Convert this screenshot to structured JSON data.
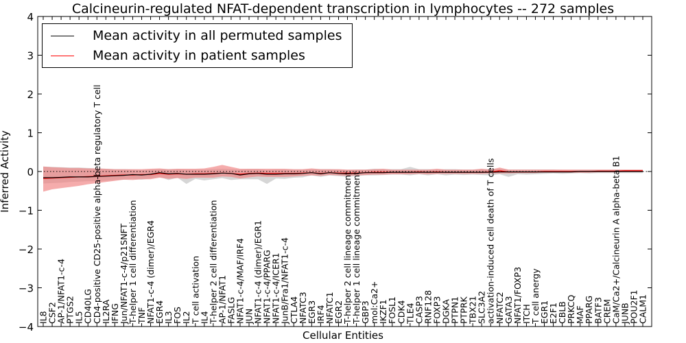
{
  "chart_data": {
    "type": "line",
    "title": "Calcineurin-regulated NFAT-dependent transcription in lymphocytes -- 272 samples",
    "xlabel": "Cellular Entities",
    "ylabel": "Inferred Activity",
    "ylim": [
      -4,
      4
    ],
    "yticks": [
      "4",
      "3",
      "2",
      "1",
      "0",
      "−1",
      "−2",
      "−3",
      "−4"
    ],
    "ytick_values": [
      4,
      3,
      2,
      1,
      0,
      -1,
      -2,
      -3,
      -4
    ],
    "legend_position": "top-left",
    "colors": {
      "permuted": "#000000",
      "patient": "#ff0000",
      "patient_band": "#f08080",
      "permuted_band": "#c8c8c8"
    },
    "categories": [
      "IL8",
      "CSF2",
      "AP-1/NFAT1-c-4",
      "PTGS2",
      "IL5",
      "CD40LG",
      "CD4-positive CD25-positive alpha-beta regulatory T cell",
      "IL2RA",
      "IFNG",
      "Jun/NFAT1-c-4/p21SNFT",
      "T-helper 1 cell differentiation",
      "TNF",
      "NFAT1-c-4 (dimer)/EGR4",
      "EGR4",
      "IL3",
      "FOS",
      "IL2",
      "T cell activation",
      "IL4",
      "T-helper 2 cell differentiation",
      "AP-1/NFAT1",
      "FASLG",
      "NFAT1-c-4/MAF/IRF4",
      "JUN",
      "NFAT1-c-4 (dimer)/EGR1",
      "NFAT1-c-4/PPARG",
      "NFAT1-c-4/ICER1",
      "JunB/Fra1/NFAT1-c-4",
      "CTLA4",
      "NFATC3",
      "EGR3",
      "IRF4",
      "NFATC1",
      "EGR2",
      "T-helper 2 cell lineage commitment",
      "T-helper 1 cell lineage commitment",
      "GBP3",
      "mol:Ca2+",
      "IKZF1",
      "FOSL1",
      "CDK4",
      "TLE4",
      "CASP3",
      "RNF128",
      "FOXP3",
      "DGKA",
      "PTPN1",
      "PTPRK",
      "TBX21",
      "SLC3A2",
      "activation-induced cell death of T cells",
      "NFATC2",
      "GATA3",
      "NFAT1/FOXP3",
      "ITCH",
      "T cell anergy",
      "EGR1",
      "E2F1",
      "CBLB",
      "PRKCQ",
      "MAF",
      "PPARG",
      "BATF3",
      "CREM",
      "CaM/Ca2+/Calcineurin A alpha-beta B1",
      "JUNB",
      "POU2F1",
      "CALM1"
    ],
    "series": [
      {
        "name": "Mean activity in all permuted samples",
        "values": [
          -0.16,
          -0.16,
          -0.15,
          -0.14,
          -0.14,
          -0.14,
          -0.13,
          -0.12,
          -0.11,
          -0.1,
          -0.08,
          -0.09,
          -0.07,
          -0.03,
          -0.06,
          -0.05,
          -0.07,
          -0.07,
          -0.07,
          -0.06,
          -0.04,
          -0.05,
          -0.09,
          -0.06,
          -0.05,
          -0.07,
          -0.07,
          -0.06,
          -0.06,
          -0.05,
          -0.03,
          -0.06,
          -0.03,
          -0.05,
          -0.06,
          -0.05,
          -0.03,
          -0.03,
          -0.03,
          -0.02,
          -0.02,
          -0.02,
          -0.02,
          -0.02,
          -0.02,
          -0.02,
          -0.02,
          -0.02,
          -0.02,
          -0.02,
          -0.02,
          -0.01,
          -0.01,
          -0.01,
          -0.01,
          -0.01,
          -0.01,
          -0.01,
          -0.01,
          -0.01,
          0.0,
          0.0,
          0.0,
          0.0,
          0.0,
          0.0,
          0.0,
          0.0
        ],
        "lower": [
          -0.31,
          -0.3,
          -0.29,
          -0.27,
          -0.26,
          -0.25,
          -0.25,
          -0.24,
          -0.22,
          -0.21,
          -0.19,
          -0.21,
          -0.18,
          -0.14,
          -0.22,
          -0.16,
          -0.32,
          -0.19,
          -0.23,
          -0.2,
          -0.17,
          -0.22,
          -0.2,
          -0.2,
          -0.2,
          -0.32,
          -0.18,
          -0.19,
          -0.16,
          -0.15,
          -0.1,
          -0.14,
          -0.1,
          -0.12,
          -0.14,
          -0.12,
          -0.1,
          -0.1,
          -0.09,
          -0.08,
          -0.08,
          -0.1,
          -0.07,
          -0.1,
          -0.07,
          -0.1,
          -0.08,
          -0.09,
          -0.08,
          -0.09,
          -0.1,
          -0.07,
          -0.14,
          -0.07,
          -0.08,
          -0.07,
          -0.06,
          -0.05,
          -0.06,
          -0.05,
          -0.04,
          -0.05,
          -0.04,
          -0.04,
          -0.04,
          -0.04,
          -0.04,
          -0.04
        ],
        "upper": [
          0.13,
          0.12,
          0.11,
          0.1,
          0.1,
          0.09,
          0.08,
          0.07,
          0.06,
          0.06,
          0.05,
          0.04,
          0.05,
          0.06,
          0.06,
          0.06,
          0.05,
          0.05,
          0.05,
          0.06,
          0.07,
          0.06,
          0.05,
          0.06,
          0.06,
          0.04,
          0.05,
          0.05,
          0.05,
          0.05,
          0.06,
          0.06,
          0.06,
          0.05,
          0.04,
          0.05,
          0.05,
          0.07,
          0.06,
          0.06,
          0.06,
          0.12,
          0.06,
          0.06,
          0.05,
          0.06,
          0.06,
          0.05,
          0.05,
          0.06,
          0.06,
          0.07,
          0.05,
          0.05,
          0.05,
          0.05,
          0.05,
          0.05,
          0.04,
          0.04,
          0.04,
          0.04,
          0.04,
          0.04,
          0.04,
          0.04,
          0.04,
          0.04
        ]
      },
      {
        "name": "Mean activity in patient samples",
        "values": [
          -0.18,
          -0.17,
          -0.16,
          -0.15,
          -0.14,
          -0.13,
          -0.12,
          -0.11,
          -0.1,
          -0.09,
          -0.09,
          -0.08,
          -0.08,
          -0.05,
          -0.07,
          -0.06,
          -0.07,
          -0.06,
          -0.06,
          -0.05,
          -0.04,
          -0.05,
          -0.07,
          -0.05,
          -0.04,
          -0.05,
          -0.05,
          -0.05,
          -0.05,
          -0.04,
          -0.03,
          -0.05,
          -0.03,
          -0.04,
          -0.04,
          -0.04,
          -0.03,
          -0.02,
          -0.02,
          -0.02,
          -0.02,
          -0.02,
          -0.01,
          -0.02,
          -0.01,
          -0.02,
          -0.02,
          -0.02,
          -0.02,
          -0.02,
          -0.01,
          0.02,
          -0.01,
          -0.01,
          -0.01,
          -0.01,
          0.0,
          0.0,
          0.0,
          0.0,
          0.0,
          0.0,
          0.01,
          0.01,
          0.01,
          0.02,
          0.02,
          0.02
        ],
        "lower": [
          -0.52,
          -0.46,
          -0.43,
          -0.4,
          -0.37,
          -0.33,
          -0.3,
          -0.27,
          -0.24,
          -0.21,
          -0.22,
          -0.2,
          -0.2,
          -0.16,
          -0.19,
          -0.17,
          -0.19,
          -0.16,
          -0.16,
          -0.16,
          -0.13,
          -0.14,
          -0.18,
          -0.15,
          -0.13,
          -0.14,
          -0.14,
          -0.14,
          -0.13,
          -0.11,
          -0.1,
          -0.11,
          -0.09,
          -0.1,
          -0.11,
          -0.1,
          -0.09,
          -0.08,
          -0.08,
          -0.07,
          -0.07,
          -0.07,
          -0.06,
          -0.07,
          -0.06,
          -0.06,
          -0.06,
          -0.06,
          -0.06,
          -0.06,
          -0.05,
          -0.05,
          -0.05,
          -0.04,
          -0.04,
          -0.04,
          -0.03,
          -0.03,
          -0.03,
          -0.03,
          -0.03,
          -0.03,
          -0.02,
          -0.02,
          -0.02,
          -0.01,
          -0.01,
          -0.01
        ],
        "upper": [
          0.13,
          0.11,
          0.1,
          0.09,
          0.09,
          0.08,
          0.08,
          0.07,
          0.06,
          0.06,
          0.06,
          0.06,
          0.07,
          0.08,
          0.06,
          0.07,
          0.07,
          0.07,
          0.08,
          0.12,
          0.17,
          0.12,
          0.07,
          0.07,
          0.07,
          0.07,
          0.07,
          0.07,
          0.06,
          0.06,
          0.08,
          0.06,
          0.06,
          0.06,
          0.05,
          0.05,
          0.05,
          0.06,
          0.07,
          0.05,
          0.05,
          0.05,
          0.05,
          0.05,
          0.07,
          0.05,
          0.05,
          0.05,
          0.05,
          0.07,
          0.05,
          0.1,
          0.05,
          0.05,
          0.05,
          0.05,
          0.05,
          0.05,
          0.05,
          0.05,
          0.05,
          0.05,
          0.05,
          0.05,
          0.05,
          0.05,
          0.05,
          0.05
        ]
      }
    ],
    "zero_line": 0
  }
}
